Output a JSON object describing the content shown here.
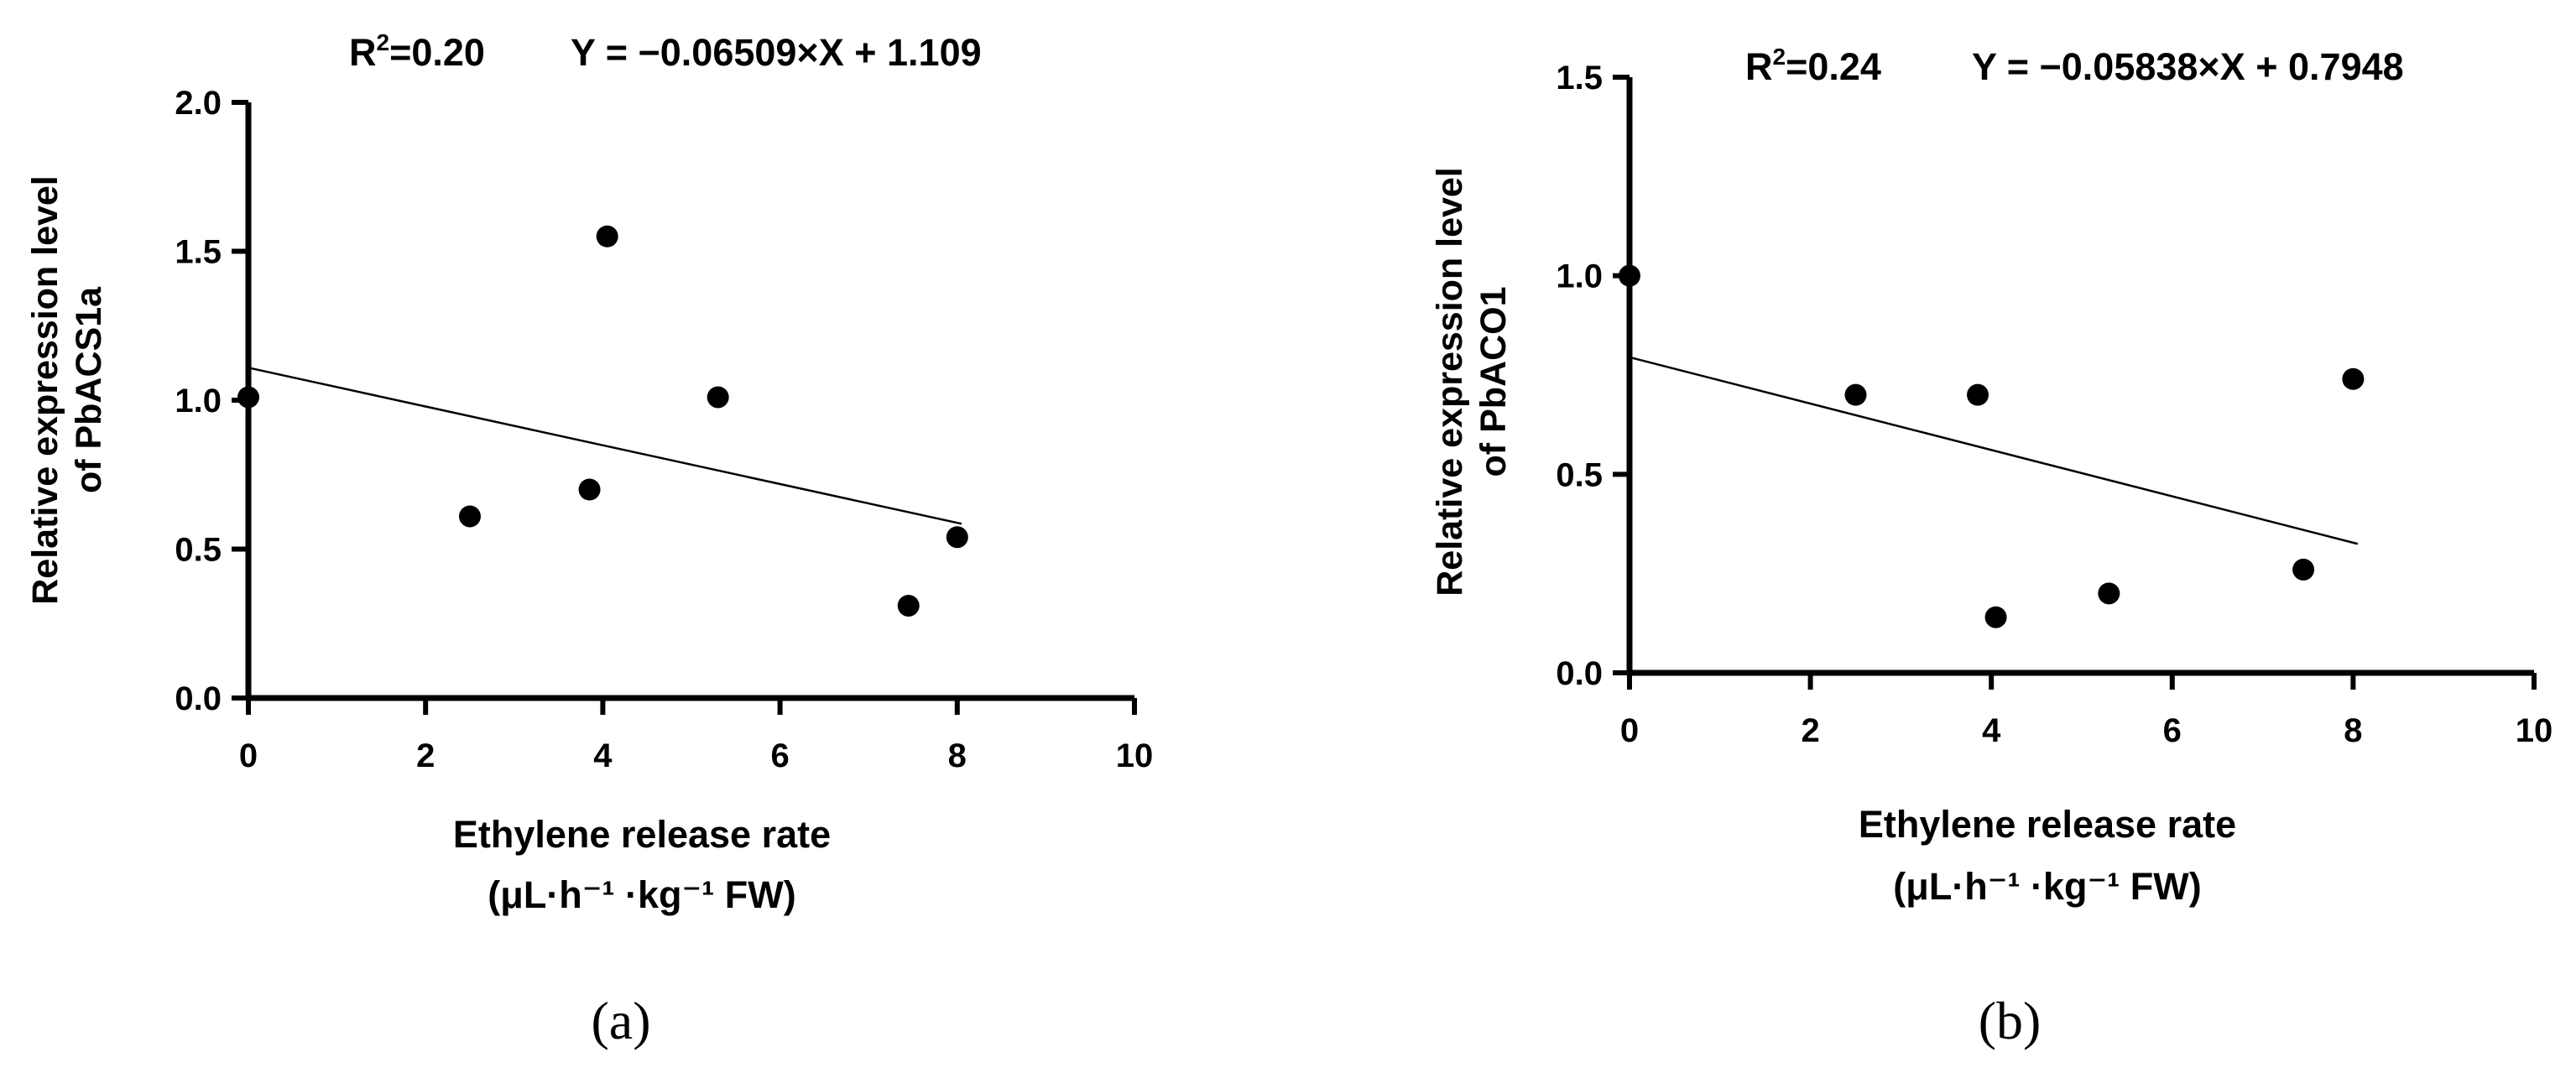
{
  "chart_data": [
    {
      "type": "scatter",
      "panel_label": "(a)",
      "r2_label": "R",
      "r2_sup": "2",
      "r2_value": "=0.20",
      "equation": "Y = −0.06509×X + 1.109",
      "xlabel_line1": "Ethylene release rate",
      "xlabel_line2": "(μL·h⁻¹ ·kg⁻¹ FW)",
      "ylabel_line1": "Relative expression level",
      "ylabel_line2": "of PbACS1a",
      "xlim": [
        0,
        10
      ],
      "ylim": [
        0,
        2.0
      ],
      "xticks": [
        0,
        2,
        4,
        6,
        8,
        10
      ],
      "yticks": [
        0,
        0.5,
        1.0,
        1.5,
        2.0
      ],
      "xtick_labels": [
        "0",
        "2",
        "4",
        "6",
        "8",
        "10"
      ],
      "ytick_labels": [
        "0.0",
        "0.5",
        "1.0",
        "1.5",
        "2.0"
      ],
      "points": [
        {
          "x": 0.0,
          "y": 1.01
        },
        {
          "x": 2.5,
          "y": 0.61
        },
        {
          "x": 3.85,
          "y": 0.7
        },
        {
          "x": 4.05,
          "y": 1.55
        },
        {
          "x": 5.3,
          "y": 1.01
        },
        {
          "x": 7.45,
          "y": 0.31
        },
        {
          "x": 8.0,
          "y": 0.54
        }
      ],
      "fit": {
        "slope": -0.06509,
        "intercept": 1.109,
        "x_range": [
          0,
          8.05
        ]
      }
    },
    {
      "type": "scatter",
      "panel_label": "(b)",
      "r2_label": "R",
      "r2_sup": "2",
      "r2_value": "=0.24",
      "equation": "Y = −0.05838×X + 0.7948",
      "xlabel_line1": "Ethylene release rate",
      "xlabel_line2": "(μL·h⁻¹ ·kg⁻¹ FW)",
      "ylabel_line1": "Relative expression level",
      "ylabel_line2": "of PbACO1",
      "xlim": [
        0,
        10
      ],
      "ylim": [
        0,
        1.5
      ],
      "xticks": [
        0,
        2,
        4,
        6,
        8,
        10
      ],
      "yticks": [
        0,
        0.5,
        1.0,
        1.5
      ],
      "xtick_labels": [
        "0",
        "2",
        "4",
        "6",
        "8",
        "10"
      ],
      "ytick_labels": [
        "0.0",
        "0.5",
        "1.0",
        "1.5"
      ],
      "points": [
        {
          "x": 0.0,
          "y": 1.0
        },
        {
          "x": 2.5,
          "y": 0.7
        },
        {
          "x": 3.85,
          "y": 0.7
        },
        {
          "x": 4.05,
          "y": 0.14
        },
        {
          "x": 5.3,
          "y": 0.2
        },
        {
          "x": 7.45,
          "y": 0.26
        },
        {
          "x": 8.0,
          "y": 0.74
        }
      ],
      "fit": {
        "slope": -0.05838,
        "intercept": 0.7948,
        "x_range": [
          0,
          8.05
        ]
      }
    }
  ]
}
